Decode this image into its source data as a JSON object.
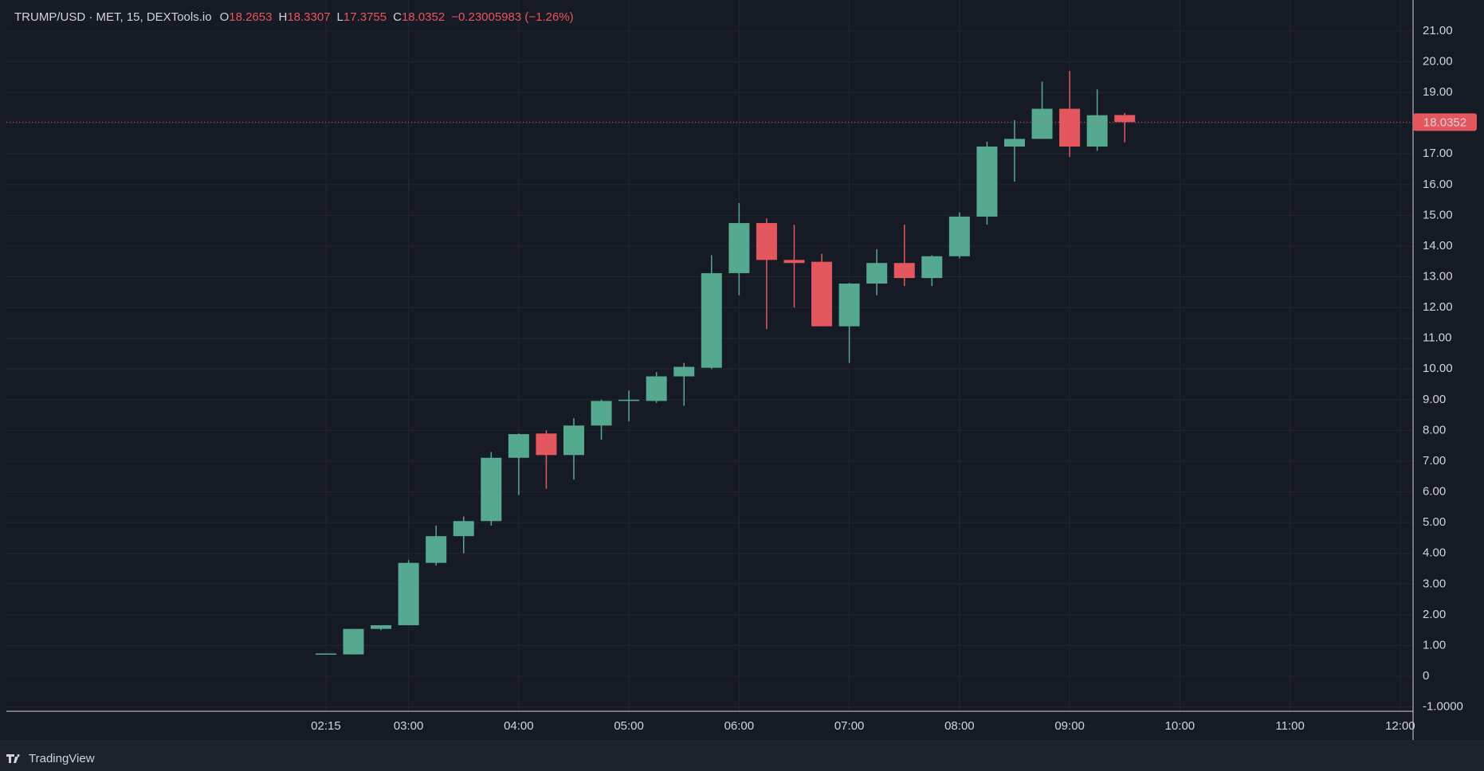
{
  "chart_data": {
    "type": "candlestick",
    "title": "TRUMP/USD · MET, 15, DEXTools.io",
    "ohlc_header": [
      {
        "label": "O",
        "value": 18.2653
      },
      {
        "label": "H",
        "value": 18.3307
      },
      {
        "label": "L",
        "value": 17.3755
      },
      {
        "label": "C",
        "value": 18.0352
      }
    ],
    "change": "−0.23005983 (−1.26%)",
    "x": [
      "02:15",
      "02:30",
      "02:45",
      "03:00",
      "03:15",
      "03:30",
      "03:45",
      "04:00",
      "04:15",
      "04:30",
      "04:45",
      "05:00",
      "05:15",
      "05:30",
      "05:45",
      "06:00",
      "06:15",
      "06:30",
      "06:45",
      "07:00",
      "07:15",
      "07:30",
      "07:45",
      "08:00",
      "08:15",
      "08:30",
      "08:45",
      "09:00",
      "09:15",
      "09:30"
    ],
    "open": [
      0.74,
      0.71,
      1.54,
      1.66,
      3.69,
      4.56,
      5.05,
      7.11,
      7.9,
      7.2,
      8.16,
      8.96,
      8.96,
      9.76,
      10.04,
      13.12,
      14.75,
      13.55,
      13.49,
      11.39,
      12.78,
      13.45,
      12.96,
      13.67,
      14.96,
      17.24,
      17.49,
      18.47,
      17.24,
      18.2653
    ],
    "high": [
      0.74,
      1.54,
      1.66,
      3.78,
      4.9,
      5.2,
      7.3,
      7.9,
      8.0,
      8.4,
      9.0,
      9.3,
      9.9,
      10.2,
      13.7,
      15.4,
      14.9,
      14.7,
      13.75,
      12.8,
      13.9,
      14.7,
      13.7,
      15.1,
      17.4,
      18.1,
      19.35,
      19.7,
      19.1,
      18.3307
    ],
    "low": [
      0.74,
      0.71,
      1.5,
      1.66,
      3.6,
      4.0,
      4.9,
      5.9,
      6.1,
      6.4,
      7.7,
      8.3,
      8.9,
      8.8,
      10.0,
      12.4,
      11.3,
      12.0,
      11.39,
      10.2,
      12.4,
      12.7,
      12.7,
      13.6,
      14.7,
      16.1,
      17.49,
      16.9,
      17.1,
      17.3755
    ],
    "close": [
      0.74,
      1.54,
      1.66,
      3.69,
      4.56,
      5.05,
      7.11,
      7.88,
      7.2,
      8.16,
      8.96,
      9.0,
      9.76,
      10.07,
      13.12,
      14.75,
      13.55,
      13.45,
      11.39,
      12.78,
      13.45,
      12.96,
      13.67,
      14.96,
      17.24,
      17.49,
      18.47,
      17.24,
      18.26,
      18.0352
    ],
    "up_color": "#55a991",
    "down_color": "#e5575e",
    "last_price": 18.0352,
    "xlim": [
      "23:21",
      "12:07"
    ],
    "xticks": [
      "02:15",
      "03:00",
      "04:00",
      "05:00",
      "06:00",
      "07:00",
      "08:00",
      "09:00",
      "10:00",
      "11:00",
      "12:00"
    ],
    "ylim": [
      -1.14,
      22.01
    ],
    "yticks": [
      {
        "value": -1,
        "label": "-1.0000"
      },
      0,
      {
        "value": 1,
        "label": "1.00"
      },
      {
        "value": 2,
        "label": "2.00"
      },
      {
        "value": 3,
        "label": "3.00"
      },
      {
        "value": 4,
        "label": "4.00"
      },
      {
        "value": 5,
        "label": "5.00"
      },
      {
        "value": 6,
        "label": "6.00"
      },
      {
        "value": 7,
        "label": "7.00"
      },
      {
        "value": 8,
        "label": "8.00"
      },
      {
        "value": 9,
        "label": "9.00"
      },
      {
        "value": 10,
        "label": "10.00"
      },
      {
        "value": 11,
        "label": "11.00"
      },
      {
        "value": 12,
        "label": "12.00"
      },
      {
        "value": 13,
        "label": "13.00"
      },
      {
        "value": 14,
        "label": "14.00"
      },
      {
        "value": 15,
        "label": "15.00"
      },
      {
        "value": 16,
        "label": "16.00"
      },
      {
        "value": 17,
        "label": "17.00"
      },
      {
        "value": 18,
        "label": "18.00"
      },
      {
        "value": 19,
        "label": "19.00"
      },
      {
        "value": 20,
        "label": "20.00"
      },
      {
        "value": 21,
        "label": "21.00"
      }
    ],
    "grid": true,
    "brand": "TradingView"
  }
}
